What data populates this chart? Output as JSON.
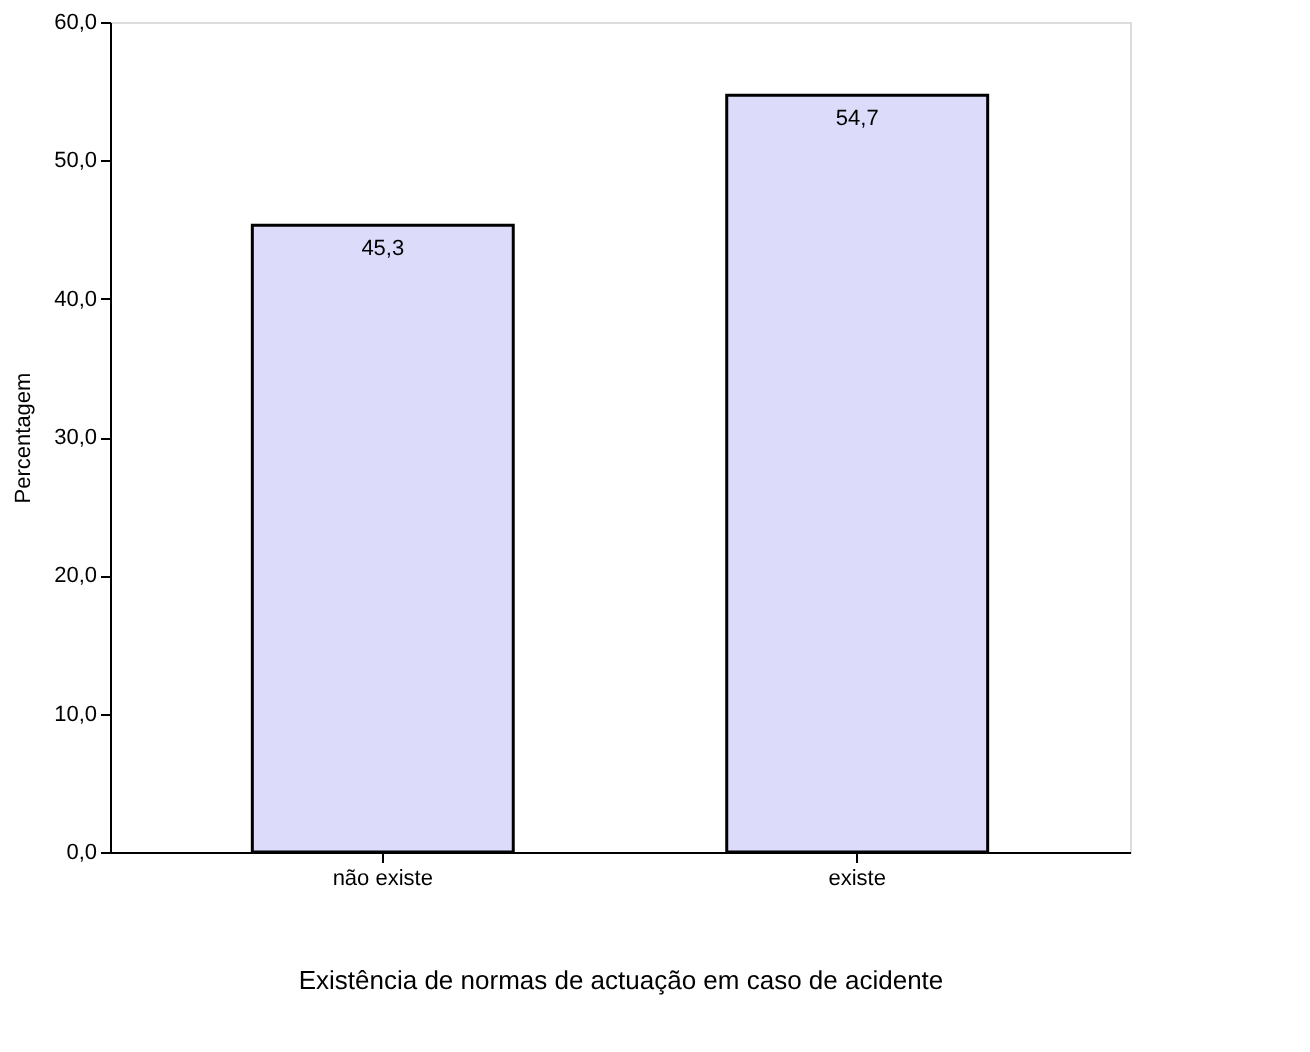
{
  "chart_data": {
    "type": "bar",
    "xlabel": "Existência de normas de actuação em caso de acidente",
    "ylabel": "Percentagem",
    "categories": [
      "não existe",
      "existe"
    ],
    "values": [
      45.3,
      54.7
    ],
    "value_labels": [
      "45,3",
      "54,7"
    ],
    "color": "#dcdcfa",
    "ylim": [
      0,
      60
    ],
    "yticks": [
      {
        "value": 0,
        "label": "0,0"
      },
      {
        "value": 10,
        "label": "10,0"
      },
      {
        "value": 20,
        "label": "20,0"
      },
      {
        "value": 30,
        "label": "30,0"
      },
      {
        "value": 40,
        "label": "40,0"
      },
      {
        "value": 50,
        "label": "50,0"
      },
      {
        "value": 60,
        "label": "60,0"
      }
    ],
    "grid": false
  }
}
